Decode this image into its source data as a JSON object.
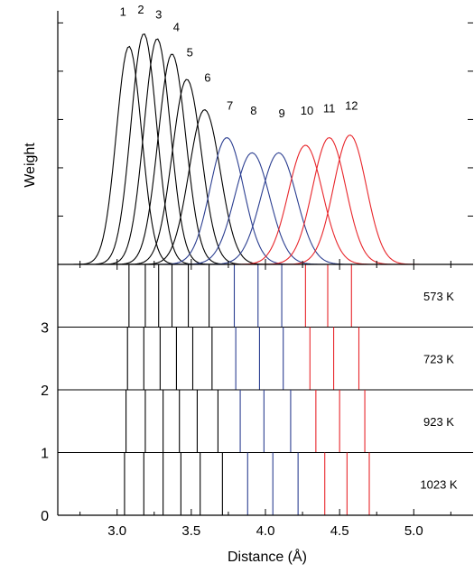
{
  "chart_data": [
    {
      "type": "line",
      "panel": "top",
      "ylabel": "Weight",
      "xlim": [
        2.6,
        5.4
      ],
      "peak_color_groups": {
        "black": [
          1,
          2,
          3,
          4,
          5,
          6
        ],
        "blue": [
          7,
          8,
          9
        ],
        "red": [
          10,
          11,
          12
        ]
      },
      "colors": {
        "black": "#000000",
        "blue": "#2c3f91",
        "red": "#e8262b"
      },
      "series": [
        {
          "name": "1",
          "peak_x": 3.08,
          "peak_height": 0.86,
          "width": 0.085
        },
        {
          "name": "2",
          "peak_x": 3.18,
          "peak_height": 0.91,
          "width": 0.087
        },
        {
          "name": "3",
          "peak_x": 3.27,
          "peak_height": 0.89,
          "width": 0.089
        },
        {
          "name": "4",
          "peak_x": 3.37,
          "peak_height": 0.83,
          "width": 0.093
        },
        {
          "name": "5",
          "peak_x": 3.47,
          "peak_height": 0.73,
          "width": 0.098
        },
        {
          "name": "6",
          "peak_x": 3.59,
          "peak_height": 0.61,
          "width": 0.105
        },
        {
          "name": "7",
          "peak_x": 3.74,
          "peak_height": 0.5,
          "width": 0.112
        },
        {
          "name": "8",
          "peak_x": 3.91,
          "peak_height": 0.44,
          "width": 0.118
        },
        {
          "name": "9",
          "peak_x": 4.09,
          "peak_height": 0.44,
          "width": 0.12
        },
        {
          "name": "10",
          "peak_x": 4.27,
          "peak_height": 0.47,
          "width": 0.115
        },
        {
          "name": "11",
          "peak_x": 4.43,
          "peak_height": 0.5,
          "width": 0.112
        },
        {
          "name": "12",
          "peak_x": 4.57,
          "peak_height": 0.51,
          "width": 0.11
        }
      ],
      "peak_labels": [
        {
          "text": "1",
          "x": 3.04,
          "y": 0.98
        },
        {
          "text": "2",
          "x": 3.16,
          "y": 0.99
        },
        {
          "text": "3",
          "x": 3.28,
          "y": 0.97
        },
        {
          "text": "4",
          "x": 3.4,
          "y": 0.92
        },
        {
          "text": "5",
          "x": 3.49,
          "y": 0.82
        },
        {
          "text": "6",
          "x": 3.61,
          "y": 0.72
        },
        {
          "text": "7",
          "x": 3.76,
          "y": 0.61
        },
        {
          "text": "8",
          "x": 3.92,
          "y": 0.59
        },
        {
          "text": "9",
          "x": 4.11,
          "y": 0.58
        },
        {
          "text": "10",
          "x": 4.28,
          "y": 0.59
        },
        {
          "text": "11",
          "x": 4.43,
          "y": 0.6
        },
        {
          "text": "12",
          "x": 4.58,
          "y": 0.61
        }
      ]
    },
    {
      "type": "bar",
      "panel": "bottom",
      "xlabel": "Distance (Å)",
      "xlim": [
        2.6,
        5.4
      ],
      "ylim": [
        0,
        4
      ],
      "xticks": [
        "3.0",
        "3.5",
        "4.0",
        "4.5",
        "5.0"
      ],
      "yticks": [
        "0",
        "1",
        "2",
        "3"
      ],
      "rows": [
        {
          "label": "573 K",
          "y": 3,
          "lines": [
            3.08,
            3.19,
            3.28,
            3.37,
            3.48,
            3.62,
            3.79,
            3.95,
            4.11,
            4.27,
            4.42,
            4.58
          ]
        },
        {
          "label": "723 K",
          "y": 2,
          "lines": [
            3.07,
            3.18,
            3.29,
            3.4,
            3.51,
            3.64,
            3.8,
            3.96,
            4.12,
            4.3,
            4.46,
            4.63
          ]
        },
        {
          "label": "923 K",
          "y": 1,
          "lines": [
            3.06,
            3.19,
            3.31,
            3.42,
            3.54,
            3.68,
            3.83,
            3.99,
            4.17,
            4.34,
            4.5,
            4.67
          ]
        },
        {
          "label": "1023 K",
          "y": 0,
          "lines": [
            3.05,
            3.18,
            3.31,
            3.43,
            3.56,
            3.71,
            3.88,
            4.05,
            4.22,
            4.4,
            4.55,
            4.7
          ]
        }
      ]
    }
  ]
}
